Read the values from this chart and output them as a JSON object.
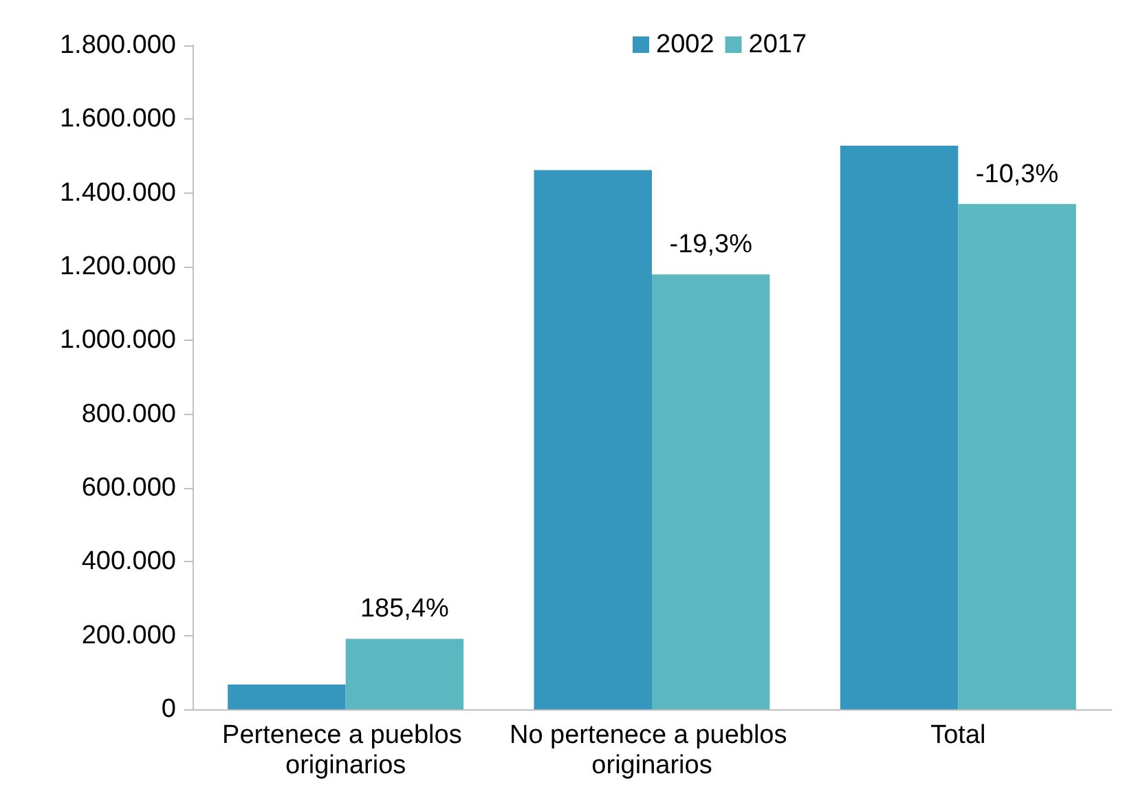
{
  "chart_data": {
    "type": "bar",
    "categories": [
      "Pertenece a pueblos originarios",
      "No pertenece a pueblos originarios",
      "Total"
    ],
    "series": [
      {
        "name": "2002",
        "color": "#3597bd",
        "values": [
          67000,
          1462000,
          1528000
        ]
      },
      {
        "name": "2017",
        "color": "#5bb8c1",
        "values": [
          191000,
          1179000,
          1370000
        ]
      }
    ],
    "annotations": [
      {
        "text": "185,4%",
        "x": "Pertenece a pueblos originarios",
        "y": 191000
      },
      {
        "text": "-19,3%",
        "x": "No pertenece a pueblos originarios",
        "y": 1179000
      },
      {
        "text": "-10,3%",
        "x": "Total",
        "y": 1370000
      }
    ],
    "ylim": [
      0,
      1800000
    ],
    "yticks": [
      {
        "value": 0,
        "label": "0"
      },
      {
        "value": 200000,
        "label": "200.000"
      },
      {
        "value": 400000,
        "label": "400.000"
      },
      {
        "value": 600000,
        "label": "600.000"
      },
      {
        "value": 800000,
        "label": "800.000"
      },
      {
        "value": 1000000,
        "label": "1.000.000"
      },
      {
        "value": 1200000,
        "label": "1.200.000"
      },
      {
        "value": 1400000,
        "label": "1.400.000"
      },
      {
        "value": 1600000,
        "label": "1.600.000"
      },
      {
        "value": 1800000,
        "label": "1.800.000"
      }
    ],
    "grid": false,
    "legend": "top right"
  }
}
